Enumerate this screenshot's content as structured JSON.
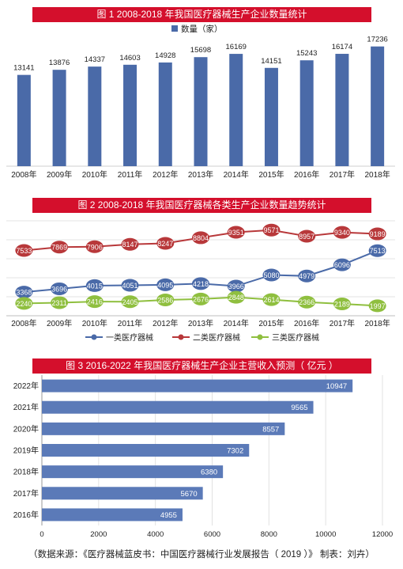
{
  "chart_data": [
    {
      "type": "bar",
      "title": "图 1    2008-2018 年我国医疗器械生产企业数量统计",
      "legend": "数量（家）",
      "legend_position": "top",
      "color": "#4a6aa8",
      "categories": [
        "2008年",
        "2009年",
        "2010年",
        "2011年",
        "2012年",
        "2013年",
        "2014年",
        "2015年",
        "2016年",
        "2017年",
        "2018年"
      ],
      "values": [
        13141,
        13876,
        14337,
        14603,
        14928,
        15698,
        16169,
        14151,
        15243,
        16174,
        17236
      ],
      "value_labels": [
        "13141",
        "13876",
        "14337",
        "14603",
        "14928",
        "15698",
        "16169",
        "14151",
        "15243",
        "16174",
        "17236"
      ],
      "ylim": [
        0,
        18000
      ]
    },
    {
      "type": "line",
      "title": "图 2    2008-2018 年我国医疗器械各类生产企业数量趋势统计",
      "legend_position": "bottom",
      "categories": [
        "2008年",
        "2009年",
        "2010年",
        "2011年",
        "2012年",
        "2013年",
        "2014年",
        "2015年",
        "2016年",
        "2017年",
        "2018年"
      ],
      "series": [
        {
          "name": "一类医疗器械",
          "color": "#4a6aa8",
          "values": [
            3368,
            3696,
            4015,
            4051,
            4095,
            4218,
            3966,
            5080,
            4979,
            6096,
            7513
          ],
          "labels": [
            "3368",
            "3696",
            "4015",
            "4051",
            "4095",
            "4218",
            "3966",
            "5080",
            "4979",
            "6096",
            "7513"
          ]
        },
        {
          "name": "二类医疗器械",
          "color": "#b8383a",
          "values": [
            7533,
            7869,
            7906,
            8147,
            8247,
            8804,
            9351,
            9571,
            8957,
            9340,
            9189
          ],
          "labels": [
            "7533",
            "7869",
            "7906",
            "8147",
            "8247",
            "8804",
            "9351",
            "9571",
            "8957",
            "9340",
            "9189"
          ]
        },
        {
          "name": "三类医疗器械",
          "color": "#8fbf3f",
          "values": [
            2240,
            2311,
            2416,
            2405,
            2586,
            2676,
            2848,
            2614,
            2366,
            2189,
            1997
          ],
          "labels": [
            "2240",
            "2311",
            "2416",
            "2405",
            "2586",
            "2676",
            "2848",
            "2614",
            "2366",
            "2189",
            "1997"
          ]
        }
      ],
      "ylim": [
        1000,
        10500
      ]
    },
    {
      "type": "bar",
      "orientation": "horizontal",
      "title": "图 3    2016-2022 年我国医疗器械生产企业主营收入预测（ 亿元 ）",
      "color": "#5b7ab8",
      "categories": [
        "2022年",
        "2021年",
        "2020年",
        "2019年",
        "2018年",
        "2017年",
        "2016年"
      ],
      "values": [
        10947,
        9565,
        8557,
        7302,
        6380,
        5670,
        4955
      ],
      "value_labels": [
        "10947",
        "9565",
        "8557",
        "7302",
        "6380",
        "5670",
        "4955"
      ],
      "xlim": [
        0,
        12000
      ],
      "xticks": [
        "0",
        "2000",
        "4000",
        "6000",
        "8000",
        "10000",
        "12000"
      ]
    }
  ],
  "footer": {
    "source": "（数据来源：《医疗器械蓝皮书：中国医疗器械行业发展报告（ 2019 ）》   制表：刘卉）"
  }
}
